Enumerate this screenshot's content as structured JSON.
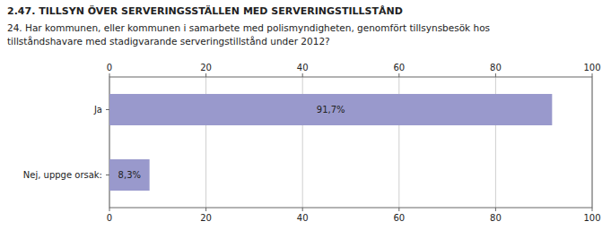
{
  "chart_data": {
    "type": "bar",
    "orientation": "horizontal",
    "title": "2.47. TILLSYN ÖVER SERVERINGSSTÄLLEN MED SERVERINGSTILLSTÅND",
    "subtitle": [
      "24. Har kommunen, eller kommunen i samarbete med polismyndigheten, genomfört tillsynsbesök hos",
      "tillståndshavare med stadigvarande serveringstillstånd under 2012?"
    ],
    "categories": [
      "Ja",
      "Nej, uppge orsak:"
    ],
    "values": [
      91.7,
      8.3
    ],
    "value_labels": [
      "91,7%",
      "8,3%"
    ],
    "data_labels": true,
    "color": "#9999cc",
    "xlim": [
      0,
      100
    ],
    "xticks": [
      0,
      20,
      40,
      60,
      80,
      100
    ],
    "grid": true
  }
}
